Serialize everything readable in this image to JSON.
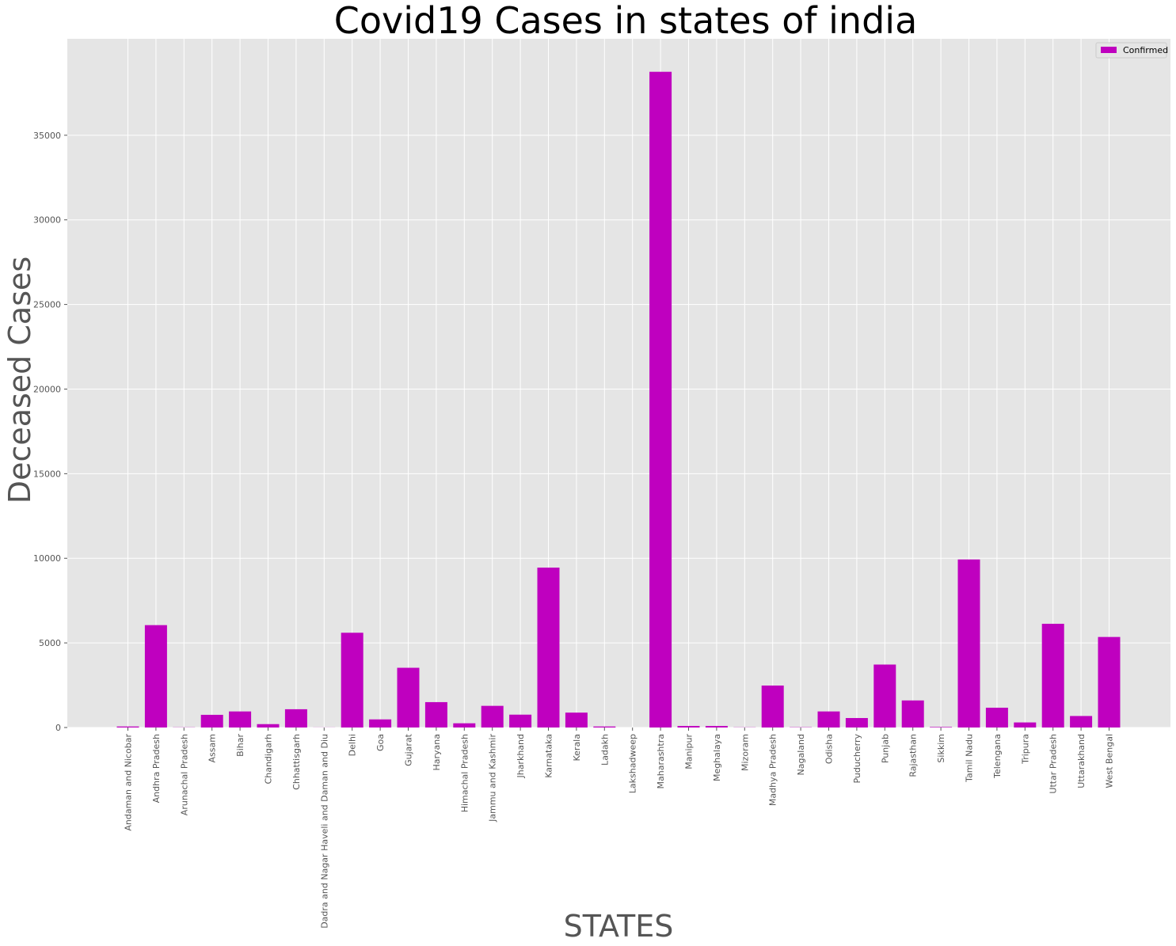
{
  "chart_data": {
    "type": "bar",
    "title": "Covid19 Cases in states of india",
    "xlabel": "STATES",
    "ylabel": "Deceased Cases",
    "ylim": [
      0,
      40700
    ],
    "yticks": [
      0,
      5000,
      10000,
      15000,
      20000,
      25000,
      30000,
      35000
    ],
    "grid": true,
    "legend_position": "top-right",
    "colors": {
      "bar": "#bf00bf",
      "plot_bg": "#e5e5e5",
      "grid": "#ffffff"
    },
    "categories": [
      "Andaman and Nicobar",
      "Andhra Pradesh",
      "Arunachal Pradesh",
      "Assam",
      "Bihar",
      "Chandigarh",
      "Chhattisgarh",
      "Dadra and Nagar Haveli and Daman and Diu",
      "Delhi",
      "Goa",
      "Gujarat",
      "Haryana",
      "Himachal Pradesh",
      "Jammu and Kashmir",
      "Jharkhand",
      "Karnataka",
      "Kerala",
      "Ladakh",
      "Lakshadweep",
      "Maharashtra",
      "Manipur",
      "Meghalaya",
      "Mizoram",
      "Madhya Pradesh",
      "Nagaland",
      "Odisha",
      "Puducherry",
      "Punjab",
      "Rajasthan",
      "Sikkim",
      "Tamil Nadu",
      "Telengana",
      "Tripura",
      "Uttar Pradesh",
      "Uttarakhand",
      "West Bengal"
    ],
    "series": [
      {
        "name": "Confirmed",
        "values": [
          60,
          6050,
          10,
          750,
          950,
          200,
          1080,
          5,
          5600,
          480,
          3530,
          1500,
          250,
          1280,
          760,
          9450,
          880,
          60,
          0,
          38750,
          90,
          90,
          10,
          2480,
          15,
          950,
          560,
          3720,
          1600,
          30,
          9930,
          1170,
          300,
          6130,
          680,
          5350
        ]
      }
    ]
  }
}
